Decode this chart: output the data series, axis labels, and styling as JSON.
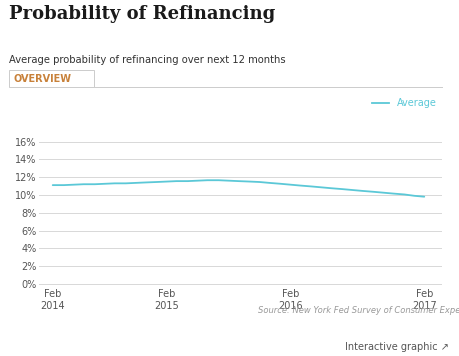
{
  "title": "Probability of Refinancing",
  "subtitle": "Average probability of refinancing over next 12 months",
  "tab_label": "OVERVIEW",
  "line_color": "#5bc8d7",
  "line_label": "Average",
  "source_text": "Source: New York Fed Survey of Consumer Expectations",
  "footer_text": "Interactive graphic ↗",
  "x_values": [
    2014.08,
    2014.17,
    2014.25,
    2014.33,
    2014.42,
    2014.5,
    2014.58,
    2014.67,
    2014.75,
    2014.83,
    2014.92,
    2015.0,
    2015.08,
    2015.17,
    2015.25,
    2015.33,
    2015.42,
    2015.5,
    2015.58,
    2015.67,
    2015.75,
    2015.83,
    2015.92,
    2016.0,
    2016.08,
    2016.17,
    2016.25,
    2016.33,
    2016.42,
    2016.5,
    2016.58,
    2016.67,
    2016.75,
    2016.83,
    2016.92,
    2017.0,
    2017.08
  ],
  "y_values": [
    11.1,
    11.1,
    11.15,
    11.2,
    11.2,
    11.25,
    11.3,
    11.3,
    11.35,
    11.4,
    11.45,
    11.5,
    11.55,
    11.55,
    11.6,
    11.65,
    11.65,
    11.6,
    11.55,
    11.5,
    11.45,
    11.35,
    11.25,
    11.15,
    11.05,
    10.95,
    10.85,
    10.75,
    10.65,
    10.55,
    10.45,
    10.35,
    10.25,
    10.15,
    10.05,
    9.9,
    9.8
  ],
  "x_ticks": [
    2014.08,
    2015.0,
    2016.0,
    2017.08
  ],
  "x_tick_labels": [
    "Feb\n2014",
    "Feb\n2015",
    "Feb\n2016",
    "Feb\n2017"
  ],
  "y_ticks": [
    0,
    2,
    4,
    6,
    8,
    10,
    12,
    14,
    16
  ],
  "ylim": [
    -0.3,
    17.5
  ],
  "xlim": [
    2013.97,
    2017.22
  ],
  "bg_color": "#ffffff",
  "plot_bg_color": "#ffffff",
  "grid_color": "#d8d8d8",
  "title_color": "#1a1a1a",
  "subtitle_color": "#333333",
  "tab_color": "#c8813a",
  "tab_border_color": "#cccccc",
  "axis_label_color": "#555555",
  "source_color": "#999999",
  "footer_color": "#555555"
}
